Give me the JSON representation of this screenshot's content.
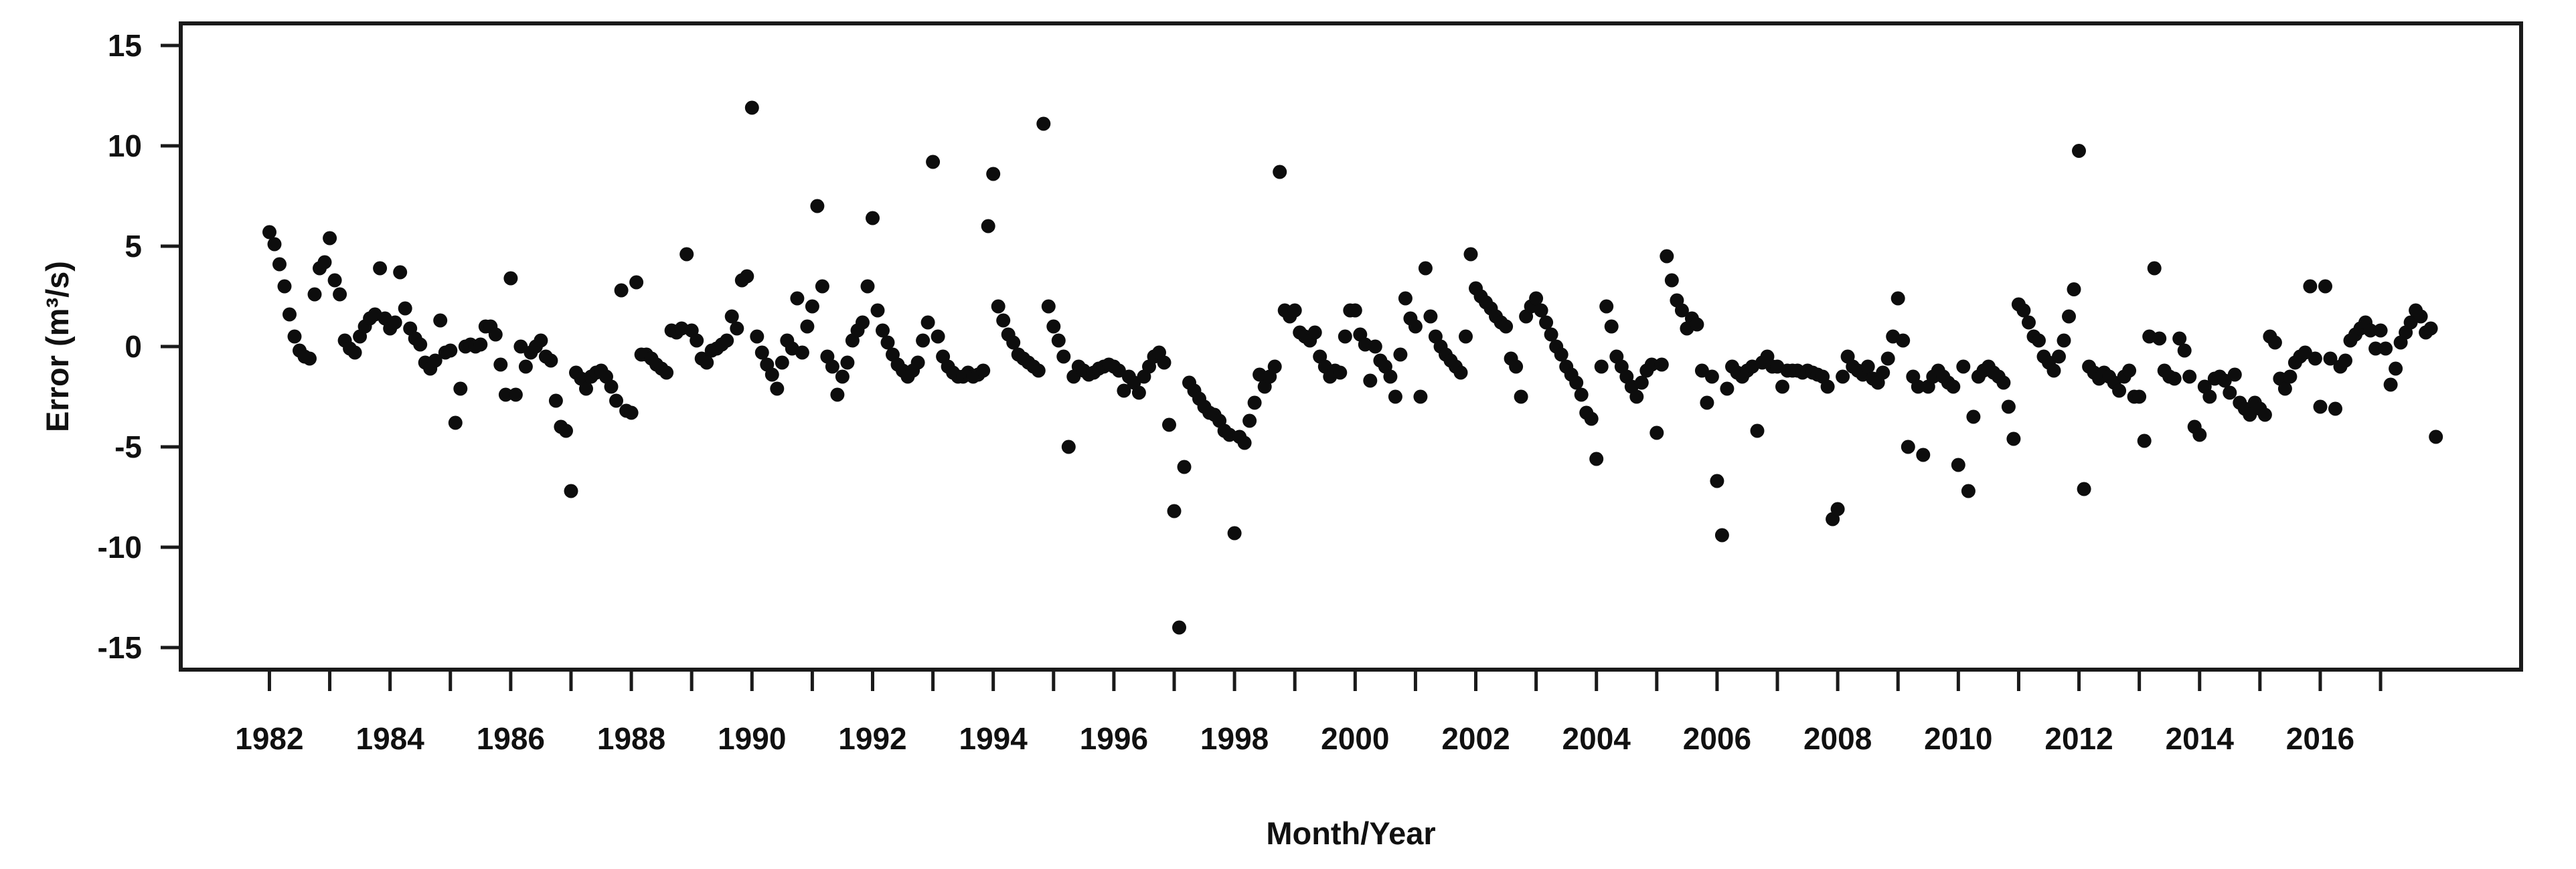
{
  "figure": {
    "background_color": "#ffffff",
    "point_color": "#0d0d0d",
    "axis_color": "#1a1a1a"
  },
  "chart_data": {
    "type": "scatter",
    "title": "",
    "xlabel": "Month/Year",
    "ylabel": "Error (m³/s)",
    "grid": false,
    "legend": null,
    "xlim": [
      1980.53,
      2019.33
    ],
    "ylim": [
      -16.1,
      16.1
    ],
    "y_ticks": [
      15,
      10,
      5,
      0,
      -5,
      -10,
      -15
    ],
    "y_tick_labels": [
      "15",
      "10",
      "5",
      "0",
      "-5",
      "-10",
      "-15"
    ],
    "x_ticks": [
      1982,
      1983,
      1984,
      1985,
      1986,
      1987,
      1988,
      1989,
      1990,
      1991,
      1992,
      1993,
      1994,
      1995,
      1996,
      1997,
      1998,
      1999,
      2000,
      2001,
      2002,
      2003,
      2004,
      2005,
      2006,
      2007,
      2008,
      2009,
      2010,
      2011,
      2012,
      2013,
      2014,
      2015,
      2016,
      2017
    ],
    "x_tick_labels": [
      "1982",
      "1984",
      "1986",
      "1988",
      "1990",
      "1992",
      "1994",
      "1996",
      "1998",
      "2000",
      "2002",
      "2004",
      "2006",
      "2008",
      "2010",
      "2012",
      "2014",
      "2016"
    ],
    "points_note": "monthly error values; point plotted at x = year + (month-1)/12",
    "monthly_values": {
      "1982": [
        5.7,
        5.1,
        4.1,
        3.0,
        1.6,
        0.5,
        -0.2,
        -0.5,
        -0.6,
        2.6,
        3.9,
        4.2
      ],
      "1983": [
        5.4,
        3.3,
        2.6,
        0.3,
        -0.1,
        -0.3,
        0.5,
        1.0,
        1.4,
        1.6,
        3.9,
        1.4
      ],
      "1984": [
        0.9,
        1.2,
        3.7,
        1.9,
        0.9,
        0.4,
        0.1,
        -0.8,
        -1.1,
        -0.7,
        1.3,
        -0.3
      ],
      "1985": [
        -0.2,
        -3.8,
        -2.1,
        0.0,
        0.1,
        0.0,
        0.1,
        1.0,
        1.0,
        0.6,
        -0.9,
        -2.4
      ],
      "1986": [
        3.4,
        -2.4,
        0.0,
        -1.0,
        -0.3,
        0.0,
        0.3,
        -0.5,
        -0.7,
        -2.7,
        -4.0,
        -4.2
      ],
      "1987": [
        -7.2,
        -1.3,
        -1.6,
        -2.1,
        -1.5,
        -1.3,
        -1.2,
        -1.5,
        -2.0,
        -2.7,
        2.8,
        -3.2
      ],
      "1988": [
        -3.3,
        3.2,
        -0.4,
        -0.4,
        -0.6,
        -0.9,
        -1.1,
        -1.3,
        0.8,
        0.7,
        0.9,
        4.6
      ],
      "1989": [
        0.8,
        0.3,
        -0.6,
        -0.8,
        -0.2,
        -0.1,
        0.1,
        0.3,
        1.5,
        0.9,
        3.3,
        3.5
      ],
      "1990": [
        11.9,
        0.5,
        -0.3,
        -0.9,
        -1.4,
        -2.1,
        -0.8,
        0.3,
        -0.1,
        2.4,
        -0.3,
        1.0
      ],
      "1991": [
        2.0,
        7.0,
        3.0,
        -0.5,
        -1.0,
        -2.4,
        -1.5,
        -0.8,
        0.3,
        0.8,
        1.2,
        3.0
      ],
      "1992": [
        6.4,
        1.8,
        0.8,
        0.2,
        -0.4,
        -0.9,
        -1.2,
        -1.5,
        -1.2,
        -0.8,
        0.3,
        1.2
      ],
      "1993": [
        9.2,
        0.5,
        -0.5,
        -1.0,
        -1.3,
        -1.5,
        -1.5,
        -1.3,
        -1.5,
        -1.4,
        -1.2,
        6.0
      ],
      "1994": [
        8.6,
        2.0,
        1.3,
        0.6,
        0.2,
        -0.4,
        -0.6,
        -0.8,
        -1.0,
        -1.2,
        11.1,
        2.0
      ],
      "1995": [
        1.0,
        0.3,
        -0.5,
        -5.0,
        -1.5,
        -1.0,
        -1.2,
        -1.4,
        -1.3,
        -1.1,
        -1.0,
        -0.9
      ],
      "1996": [
        -1.0,
        -1.2,
        -2.2,
        -1.5,
        -1.8,
        -2.3,
        -1.5,
        -1.0,
        -0.5,
        -0.3,
        -0.8,
        -3.9
      ],
      "1997": [
        -8.2,
        -14.0,
        -6.0,
        -1.8,
        -2.2,
        -2.6,
        -3.0,
        -3.3,
        -3.4,
        -3.7,
        -4.2,
        -4.4
      ],
      "1998": [
        -9.3,
        -4.5,
        -4.8,
        -3.7,
        -2.8,
        -1.4,
        -2.0,
        -1.5,
        -1.0,
        8.7,
        1.8,
        1.5
      ],
      "1999": [
        1.8,
        0.7,
        0.5,
        0.3,
        0.7,
        -0.5,
        -1.0,
        -1.5,
        -1.2,
        -1.3,
        0.5,
        1.8
      ],
      "2000": [
        1.8,
        0.6,
        0.1,
        -1.7,
        0.0,
        -0.7,
        -1.0,
        -1.5,
        -2.5,
        -0.4,
        2.4,
        1.4
      ],
      "2001": [
        1.0,
        -2.5,
        3.9,
        1.5,
        0.5,
        0.0,
        -0.4,
        -0.7,
        -1.0,
        -1.3,
        0.5,
        4.6
      ],
      "2002": [
        2.9,
        2.5,
        2.2,
        1.9,
        1.5,
        1.2,
        1.0,
        -0.6,
        -1.0,
        -2.5,
        1.5,
        2.0
      ],
      "2003": [
        2.4,
        1.8,
        1.2,
        0.6,
        0.0,
        -0.4,
        -1.0,
        -1.4,
        -1.8,
        -2.4,
        -3.3,
        -3.6
      ],
      "2004": [
        -5.6,
        -1.0,
        2.0,
        1.0,
        -0.5,
        -1.0,
        -1.5,
        -2.0,
        -2.5,
        -1.8,
        -1.2,
        -0.9
      ],
      "2005": [
        -4.3,
        -0.9,
        4.5,
        3.3,
        2.3,
        1.8,
        0.9,
        1.4,
        1.1,
        -1.2,
        -2.8,
        -1.5
      ],
      "2006": [
        -6.7,
        -9.4,
        -2.1,
        -1.0,
        -1.3,
        -1.5,
        -1.2,
        -1.0,
        -4.2,
        -0.8,
        -0.5,
        -1.0
      ],
      "2007": [
        -1.0,
        -2.0,
        -1.2,
        -1.2,
        -1.2,
        -1.3,
        -1.2,
        -1.3,
        -1.4,
        -1.5,
        -2.0,
        -8.6
      ],
      "2008": [
        -8.1,
        -1.5,
        -0.5,
        -1.0,
        -1.2,
        -1.4,
        -1.0,
        -1.6,
        -1.8,
        -1.3,
        -0.6,
        0.5
      ],
      "2009": [
        2.4,
        0.3,
        -5.0,
        -1.5,
        -2.0,
        -5.4,
        -2.0,
        -1.5,
        -1.2,
        -1.5,
        -1.8,
        -2.0
      ],
      "2010": [
        -5.9,
        -1.0,
        -7.2,
        -3.5,
        -1.5,
        -1.2,
        -1.0,
        -1.3,
        -1.5,
        -1.8,
        -3.0,
        -4.6
      ],
      "2011": [
        2.1,
        1.8,
        1.2,
        0.5,
        0.3,
        -0.5,
        -0.8,
        -1.2,
        -0.5,
        0.3,
        1.5,
        2.85
      ],
      "2012": [
        9.75,
        -7.1,
        -1.0,
        -1.3,
        -1.6,
        -1.3,
        -1.5,
        -1.8,
        -2.2,
        -1.5,
        -1.2,
        -2.5
      ],
      "2013": [
        -2.5,
        -4.7,
        0.5,
        3.9,
        0.4,
        -1.2,
        -1.5,
        -1.6,
        0.4,
        -0.2,
        -1.5,
        -4.0
      ],
      "2014": [
        -4.4,
        -2.0,
        -2.5,
        -1.6,
        -1.5,
        -1.7,
        -2.3,
        -1.4,
        -2.8,
        -3.1,
        -3.4,
        -2.8
      ],
      "2015": [
        -3.1,
        -3.4,
        0.5,
        0.2,
        -1.6,
        -2.1,
        -1.5,
        -0.8,
        -0.5,
        -0.3,
        3.0,
        -0.6
      ],
      "2016": [
        -3.0,
        3.0,
        -0.6,
        -3.1,
        -1.0,
        -0.7,
        0.3,
        0.6,
        0.9,
        1.2,
        0.8,
        -0.1
      ],
      "2017": [
        0.8,
        -0.1,
        -1.9,
        -1.1,
        0.2,
        0.7,
        1.2,
        1.8,
        1.5,
        0.7,
        0.9,
        -4.5
      ]
    }
  }
}
